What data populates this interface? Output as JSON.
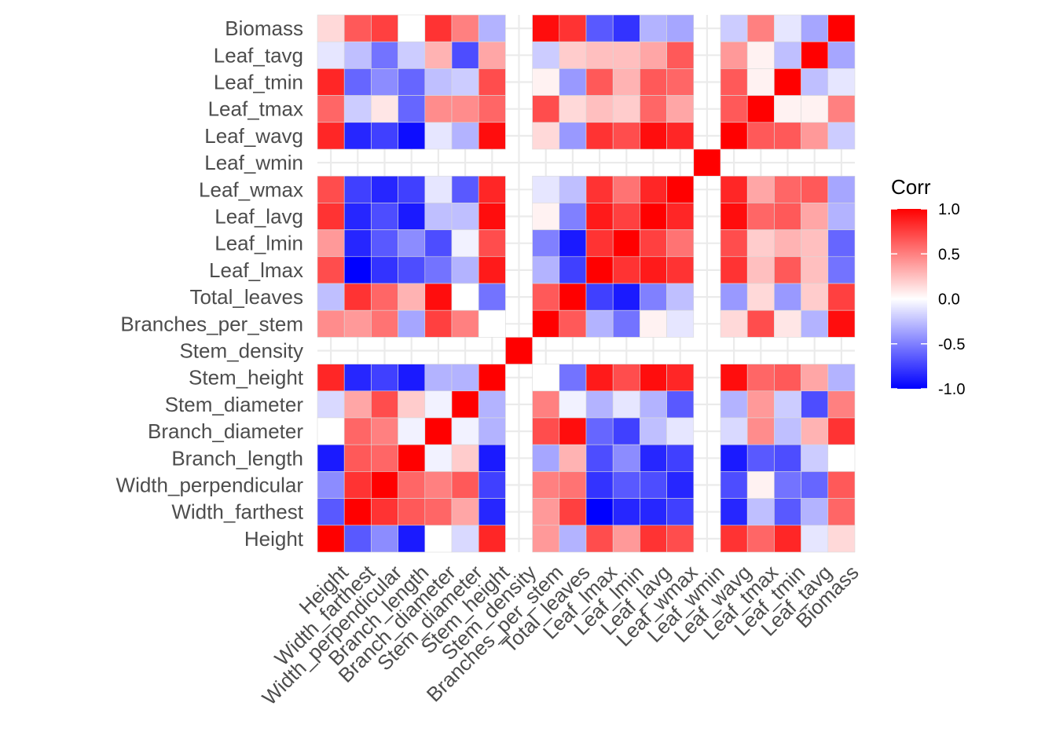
{
  "chart_data": {
    "type": "heatmap",
    "variables": [
      "Height",
      "Width_farthest",
      "Width_perpendicular",
      "Branch_length",
      "Branch_diameter",
      "Stem_diameter",
      "Stem_height",
      "Stem_density",
      "Branches_per_stem",
      "Total_leaves",
      "Leaf_lmax",
      "Leaf_lmin",
      "Leaf_lavg",
      "Leaf_wmax",
      "Leaf_wmin",
      "Leaf_wavg",
      "Leaf_tmax",
      "Leaf_tmin",
      "Leaf_tavg",
      "Biomass"
    ],
    "x_labels": [
      "Height",
      "Width_farthest",
      "Width_perpendicular",
      "Branch_length",
      "Branch_diameter",
      "Stem_diameter",
      "Stem_height",
      "Stem_density",
      "Branches_per_stem",
      "Total_leaves",
      "Leaf_lmax",
      "Leaf_lmin",
      "Leaf_lavg",
      "Leaf_wmax",
      "Leaf_wmin",
      "Leaf_wavg",
      "Leaf_tmax",
      "Leaf_tmin",
      "Leaf_tavg",
      "Biomass"
    ],
    "y_labels_top_to_bottom": [
      "Biomass",
      "Leaf_tavg",
      "Leaf_tmin",
      "Leaf_tmax",
      "Leaf_wavg",
      "Leaf_wmin",
      "Leaf_wmax",
      "Leaf_lavg",
      "Leaf_lmin",
      "Leaf_lmax",
      "Total_leaves",
      "Branches_per_stem",
      "Stem_density",
      "Stem_height",
      "Stem_diameter",
      "Branch_diameter",
      "Branch_length",
      "Width_perpendicular",
      "Width_farthest",
      "Height"
    ],
    "values_rows_top_to_bottom": [
      [
        0.15,
        0.65,
        0.75,
        0.0,
        0.8,
        0.5,
        -0.3,
        null,
        0.95,
        0.8,
        -0.65,
        -0.8,
        -0.3,
        -0.35,
        null,
        -0.2,
        0.5,
        -0.1,
        -0.35,
        1.0
      ],
      [
        -0.1,
        -0.25,
        -0.55,
        -0.2,
        0.3,
        -0.7,
        0.35,
        null,
        -0.2,
        0.2,
        0.25,
        0.25,
        0.35,
        0.65,
        null,
        0.4,
        0.05,
        -0.25,
        1.0,
        -0.35
      ],
      [
        0.85,
        -0.6,
        -0.45,
        -0.6,
        -0.25,
        -0.2,
        0.7,
        null,
        0.05,
        -0.4,
        0.65,
        0.3,
        0.65,
        0.6,
        null,
        0.65,
        0.05,
        1.0,
        -0.25,
        -0.1
      ],
      [
        0.6,
        -0.2,
        0.1,
        -0.6,
        0.45,
        0.45,
        0.6,
        null,
        0.7,
        0.15,
        0.25,
        0.2,
        0.6,
        0.35,
        null,
        0.65,
        1.0,
        0.05,
        0.05,
        0.5
      ],
      [
        0.85,
        -0.85,
        -0.75,
        -0.95,
        -0.1,
        -0.3,
        0.95,
        null,
        0.15,
        -0.4,
        0.8,
        0.7,
        0.95,
        0.85,
        null,
        1.0,
        0.65,
        0.65,
        0.4,
        -0.2
      ],
      [
        null,
        null,
        null,
        null,
        null,
        null,
        null,
        null,
        null,
        null,
        null,
        null,
        null,
        null,
        1.0,
        null,
        null,
        null,
        null,
        null
      ],
      [
        0.7,
        -0.75,
        -0.85,
        -0.75,
        -0.1,
        -0.65,
        0.85,
        null,
        -0.1,
        -0.25,
        0.8,
        0.55,
        0.85,
        1.0,
        null,
        0.85,
        0.35,
        0.6,
        0.65,
        -0.35
      ],
      [
        0.8,
        -0.85,
        -0.7,
        -0.9,
        -0.25,
        -0.25,
        0.95,
        null,
        0.05,
        -0.5,
        0.9,
        0.75,
        1.0,
        0.85,
        null,
        0.95,
        0.6,
        0.65,
        0.35,
        -0.3
      ],
      [
        0.4,
        -0.85,
        -0.65,
        -0.45,
        -0.7,
        -0.05,
        0.7,
        null,
        -0.5,
        -0.9,
        0.8,
        1.0,
        0.75,
        0.55,
        null,
        0.7,
        0.2,
        0.3,
        0.25,
        -0.6
      ],
      [
        0.7,
        -1.0,
        -0.8,
        -0.7,
        -0.55,
        -0.3,
        0.9,
        null,
        -0.3,
        -0.75,
        1.0,
        0.8,
        0.9,
        0.8,
        null,
        0.8,
        0.25,
        0.65,
        0.25,
        -0.55
      ],
      [
        -0.25,
        0.8,
        0.6,
        0.3,
        0.95,
        0.0,
        -0.55,
        null,
        0.65,
        1.0,
        -0.75,
        -0.9,
        -0.5,
        -0.25,
        null,
        -0.4,
        0.15,
        -0.4,
        0.2,
        0.75
      ],
      [
        0.45,
        0.4,
        0.55,
        -0.35,
        0.75,
        0.5,
        0.0,
        null,
        1.0,
        0.65,
        -0.3,
        -0.55,
        0.05,
        -0.1,
        null,
        0.15,
        0.7,
        0.1,
        -0.3,
        0.95
      ],
      [
        null,
        null,
        null,
        null,
        null,
        null,
        null,
        1.0,
        null,
        null,
        null,
        null,
        null,
        null,
        null,
        null,
        null,
        null,
        null,
        null
      ],
      [
        0.85,
        -0.85,
        -0.75,
        -0.9,
        -0.3,
        -0.3,
        1.0,
        null,
        0.0,
        -0.55,
        0.9,
        0.7,
        0.95,
        0.85,
        null,
        0.95,
        0.6,
        0.65,
        0.35,
        -0.3
      ],
      [
        -0.15,
        0.35,
        0.7,
        0.2,
        -0.05,
        1.0,
        -0.3,
        null,
        0.5,
        -0.05,
        -0.3,
        -0.1,
        -0.3,
        -0.65,
        null,
        -0.3,
        0.4,
        -0.2,
        -0.7,
        0.5
      ],
      [
        0.0,
        0.6,
        0.5,
        -0.05,
        1.0,
        -0.05,
        -0.3,
        null,
        0.7,
        0.95,
        -0.6,
        -0.75,
        -0.25,
        -0.1,
        null,
        -0.15,
        0.45,
        -0.25,
        0.3,
        0.8
      ],
      [
        -0.9,
        0.65,
        0.6,
        1.0,
        -0.05,
        0.2,
        -0.9,
        null,
        -0.35,
        0.3,
        -0.7,
        -0.45,
        -0.85,
        -0.75,
        null,
        -0.9,
        -0.65,
        -0.7,
        -0.2,
        0.0
      ],
      [
        -0.45,
        0.8,
        1.0,
        0.6,
        0.5,
        0.65,
        -0.75,
        null,
        0.5,
        0.55,
        -0.8,
        -0.65,
        -0.7,
        -0.85,
        null,
        -0.7,
        0.05,
        -0.55,
        -0.6,
        0.65
      ],
      [
        -0.65,
        1.0,
        0.8,
        0.65,
        0.6,
        0.35,
        -0.85,
        null,
        0.4,
        0.75,
        -1.0,
        -0.85,
        -0.85,
        -0.75,
        null,
        -0.85,
        -0.25,
        -0.65,
        -0.3,
        0.6
      ],
      [
        1.0,
        -0.65,
        -0.45,
        -0.9,
        0.0,
        -0.15,
        0.85,
        null,
        0.4,
        -0.3,
        0.7,
        0.4,
        0.8,
        0.7,
        null,
        0.8,
        0.6,
        0.85,
        -0.1,
        0.15
      ]
    ],
    "color_scale": {
      "low": "#0000ff",
      "mid": "#ffffff",
      "high": "#ff0000",
      "limits": [
        -1,
        1
      ]
    },
    "legend": {
      "title": "Corr",
      "ticks": [
        "1.0",
        "0.5",
        "0.0",
        "-0.5",
        "-1.0"
      ],
      "tick_values": [
        1.0,
        0.5,
        0.0,
        -0.5,
        -1.0
      ],
      "placement": "right"
    },
    "grid": true
  }
}
